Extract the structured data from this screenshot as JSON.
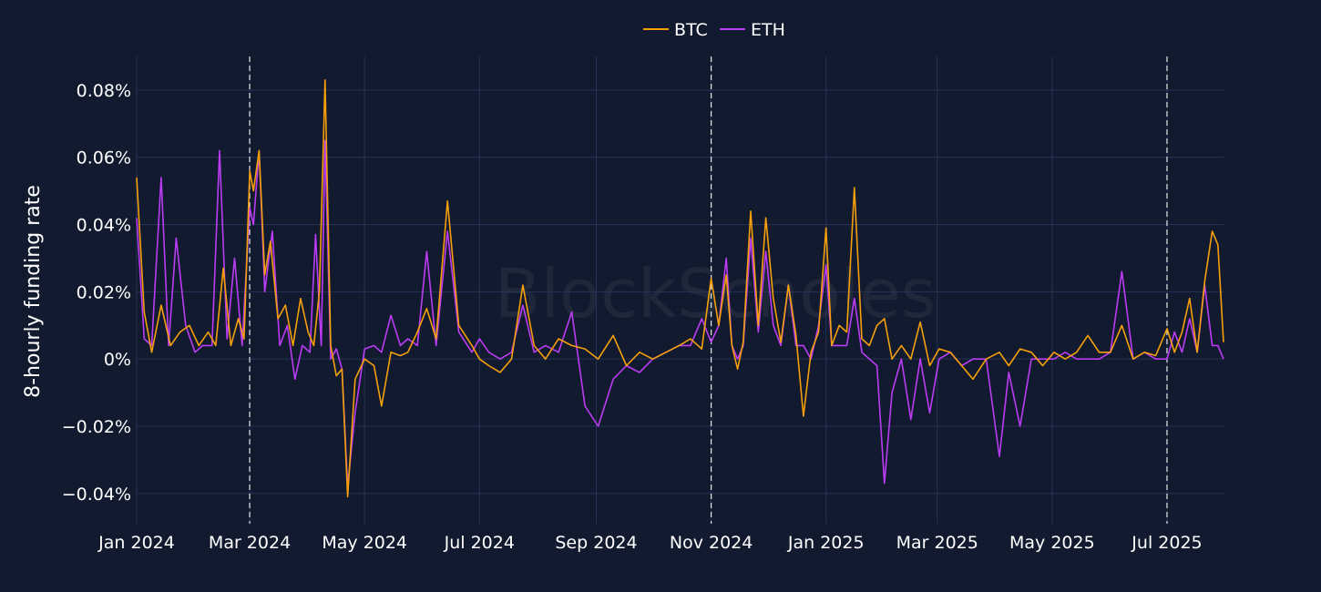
{
  "chart_data": {
    "type": "line",
    "ylabel": "8-hourly funding rate",
    "xlabel": "",
    "y_unit": "%",
    "ylim": [
      -0.049,
      0.09
    ],
    "y_ticks": [
      -0.04,
      -0.02,
      0,
      0.02,
      0.04,
      0.06,
      0.08
    ],
    "y_tick_labels": [
      "−0.04%",
      "−0.02%",
      "0%",
      "0.02%",
      "0.04%",
      "0.06%",
      "0.08%"
    ],
    "x_range": [
      "2024-01-01",
      "2025-07-31"
    ],
    "x_ticks": [
      "2024-01-01",
      "2024-03-01",
      "2024-05-01",
      "2024-07-01",
      "2024-09-01",
      "2024-11-01",
      "2025-01-01",
      "2025-03-01",
      "2025-05-01",
      "2025-07-01"
    ],
    "x_tick_labels": [
      "Jan 2024",
      "Mar 2024",
      "May 2024",
      "Jul 2024",
      "Sep 2024",
      "Nov 2024",
      "Jan 2025",
      "Mar 2025",
      "May 2025",
      "Jul 2025"
    ],
    "dashed_vlines": [
      "2024-03-01",
      "2024-11-01",
      "2025-07-01"
    ],
    "grid": true,
    "legend_position": "top-center",
    "watermark": "BlockScholes",
    "colors": {
      "background": "#111a2e",
      "grid": "#263357",
      "BTC": "#f5a00b",
      "ETH": "#bc3cf5"
    },
    "series": [
      {
        "name": "BTC",
        "x": [
          "2024-01-01",
          "2024-01-05",
          "2024-01-09",
          "2024-01-14",
          "2024-01-19",
          "2024-01-24",
          "2024-01-29",
          "2024-02-03",
          "2024-02-08",
          "2024-02-12",
          "2024-02-16",
          "2024-02-20",
          "2024-02-24",
          "2024-02-27",
          "2024-03-01",
          "2024-03-03",
          "2024-03-06",
          "2024-03-09",
          "2024-03-12",
          "2024-03-16",
          "2024-03-20",
          "2024-03-24",
          "2024-03-28",
          "2024-04-01",
          "2024-04-04",
          "2024-04-07",
          "2024-04-10",
          "2024-04-13",
          "2024-04-16",
          "2024-04-19",
          "2024-04-22",
          "2024-04-26",
          "2024-05-01",
          "2024-05-06",
          "2024-05-10",
          "2024-05-15",
          "2024-05-20",
          "2024-05-24",
          "2024-05-29",
          "2024-06-03",
          "2024-06-08",
          "2024-06-14",
          "2024-06-20",
          "2024-06-27",
          "2024-07-01",
          "2024-07-06",
          "2024-07-12",
          "2024-07-18",
          "2024-07-24",
          "2024-07-30",
          "2024-08-05",
          "2024-08-12",
          "2024-08-19",
          "2024-08-26",
          "2024-09-02",
          "2024-09-10",
          "2024-09-17",
          "2024-09-24",
          "2024-10-01",
          "2024-10-08",
          "2024-10-15",
          "2024-10-21",
          "2024-10-27",
          "2024-11-01",
          "2024-11-05",
          "2024-11-09",
          "2024-11-12",
          "2024-11-15",
          "2024-11-18",
          "2024-11-22",
          "2024-11-26",
          "2024-11-30",
          "2024-12-04",
          "2024-12-08",
          "2024-12-12",
          "2024-12-16",
          "2024-12-20",
          "2024-12-24",
          "2024-12-28",
          "2025-01-01",
          "2025-01-04",
          "2025-01-08",
          "2025-01-12",
          "2025-01-16",
          "2025-01-20",
          "2025-01-24",
          "2025-01-28",
          "2025-02-01",
          "2025-02-05",
          "2025-02-10",
          "2025-02-15",
          "2025-02-20",
          "2025-02-25",
          "2025-03-02",
          "2025-03-08",
          "2025-03-14",
          "2025-03-20",
          "2025-03-27",
          "2025-04-03",
          "2025-04-08",
          "2025-04-14",
          "2025-04-20",
          "2025-04-26",
          "2025-05-02",
          "2025-05-08",
          "2025-05-14",
          "2025-05-20",
          "2025-05-26",
          "2025-06-01",
          "2025-06-07",
          "2025-06-13",
          "2025-06-19",
          "2025-06-25",
          "2025-07-01",
          "2025-07-05",
          "2025-07-09",
          "2025-07-13",
          "2025-07-17",
          "2025-07-21",
          "2025-07-25",
          "2025-07-28",
          "2025-07-31"
        ],
        "y": [
          0.054,
          0.014,
          0.002,
          0.016,
          0.004,
          0.008,
          0.01,
          0.004,
          0.008,
          0.004,
          0.027,
          0.004,
          0.012,
          0.006,
          0.056,
          0.05,
          0.062,
          0.025,
          0.035,
          0.012,
          0.016,
          0.004,
          0.018,
          0.008,
          0.004,
          0.02,
          0.083,
          0.004,
          -0.005,
          -0.003,
          -0.041,
          -0.006,
          0.0,
          -0.002,
          -0.014,
          0.002,
          0.001,
          0.002,
          0.008,
          0.015,
          0.006,
          0.047,
          0.01,
          0.004,
          0.0,
          -0.002,
          -0.004,
          0.0,
          0.022,
          0.004,
          0.0,
          0.006,
          0.004,
          0.003,
          0.0,
          0.007,
          -0.002,
          0.002,
          0.0,
          0.002,
          0.004,
          0.006,
          0.003,
          0.024,
          0.01,
          0.025,
          0.004,
          -0.003,
          0.005,
          0.044,
          0.01,
          0.042,
          0.018,
          0.005,
          0.022,
          0.007,
          -0.017,
          0.002,
          0.008,
          0.039,
          0.004,
          0.01,
          0.008,
          0.051,
          0.006,
          0.004,
          0.01,
          0.012,
          0.0,
          0.004,
          0.0,
          0.011,
          -0.002,
          0.003,
          0.002,
          -0.002,
          -0.006,
          0.0,
          0.002,
          -0.002,
          0.003,
          0.002,
          -0.002,
          0.002,
          0.0,
          0.002,
          0.007,
          0.002,
          0.002,
          0.01,
          0.0,
          0.002,
          0.001,
          0.009,
          0.002,
          0.008,
          0.018,
          0.002,
          0.023,
          0.038,
          0.034,
          0.005
        ]
      },
      {
        "name": "ETH",
        "x": [
          "2024-01-01",
          "2024-01-05",
          "2024-01-09",
          "2024-01-14",
          "2024-01-18",
          "2024-01-22",
          "2024-01-27",
          "2024-02-01",
          "2024-02-05",
          "2024-02-10",
          "2024-02-14",
          "2024-02-18",
          "2024-02-22",
          "2024-02-26",
          "2024-03-01",
          "2024-03-03",
          "2024-03-06",
          "2024-03-09",
          "2024-03-13",
          "2024-03-17",
          "2024-03-21",
          "2024-03-25",
          "2024-03-29",
          "2024-04-02",
          "2024-04-05",
          "2024-04-08",
          "2024-04-10",
          "2024-04-13",
          "2024-04-16",
          "2024-04-19",
          "2024-04-22",
          "2024-04-26",
          "2024-05-01",
          "2024-05-06",
          "2024-05-10",
          "2024-05-15",
          "2024-05-20",
          "2024-05-24",
          "2024-05-29",
          "2024-06-03",
          "2024-06-08",
          "2024-06-14",
          "2024-06-20",
          "2024-06-27",
          "2024-07-01",
          "2024-07-06",
          "2024-07-12",
          "2024-07-18",
          "2024-07-24",
          "2024-07-30",
          "2024-08-05",
          "2024-08-12",
          "2024-08-19",
          "2024-08-26",
          "2024-09-02",
          "2024-09-10",
          "2024-09-17",
          "2024-09-24",
          "2024-10-01",
          "2024-10-08",
          "2024-10-15",
          "2024-10-21",
          "2024-10-27",
          "2024-11-01",
          "2024-11-05",
          "2024-11-09",
          "2024-11-12",
          "2024-11-15",
          "2024-11-18",
          "2024-11-22",
          "2024-11-26",
          "2024-11-30",
          "2024-12-04",
          "2024-12-08",
          "2024-12-12",
          "2024-12-16",
          "2024-12-20",
          "2024-12-24",
          "2024-12-28",
          "2025-01-01",
          "2025-01-04",
          "2025-01-08",
          "2025-01-12",
          "2025-01-16",
          "2025-01-20",
          "2025-01-24",
          "2025-01-28",
          "2025-02-01",
          "2025-02-05",
          "2025-02-10",
          "2025-02-15",
          "2025-02-20",
          "2025-02-25",
          "2025-03-02",
          "2025-03-08",
          "2025-03-14",
          "2025-03-20",
          "2025-03-27",
          "2025-04-03",
          "2025-04-08",
          "2025-04-14",
          "2025-04-20",
          "2025-04-26",
          "2025-05-02",
          "2025-05-08",
          "2025-05-14",
          "2025-05-20",
          "2025-05-26",
          "2025-06-01",
          "2025-06-07",
          "2025-06-13",
          "2025-06-19",
          "2025-06-25",
          "2025-07-01",
          "2025-07-05",
          "2025-07-09",
          "2025-07-13",
          "2025-07-17",
          "2025-07-21",
          "2025-07-25",
          "2025-07-28",
          "2025-07-31"
        ],
        "y": [
          0.042,
          0.006,
          0.004,
          0.054,
          0.004,
          0.036,
          0.01,
          0.002,
          0.004,
          0.004,
          0.062,
          0.006,
          0.03,
          0.004,
          0.045,
          0.04,
          0.062,
          0.02,
          0.038,
          0.004,
          0.01,
          -0.006,
          0.004,
          0.002,
          0.037,
          0.004,
          0.065,
          0.0,
          0.003,
          -0.003,
          -0.038,
          -0.016,
          0.003,
          0.004,
          0.002,
          0.013,
          0.004,
          0.006,
          0.004,
          0.032,
          0.004,
          0.038,
          0.008,
          0.002,
          0.006,
          0.002,
          0.0,
          0.002,
          0.016,
          0.002,
          0.004,
          0.002,
          0.014,
          -0.014,
          -0.02,
          -0.006,
          -0.002,
          -0.004,
          0.0,
          0.002,
          0.004,
          0.004,
          0.012,
          0.005,
          0.01,
          0.03,
          0.004,
          0.0,
          0.004,
          0.036,
          0.008,
          0.032,
          0.01,
          0.004,
          0.022,
          0.004,
          0.004,
          0.0,
          0.01,
          0.028,
          0.004,
          0.004,
          0.004,
          0.018,
          0.002,
          0.0,
          -0.002,
          -0.037,
          -0.01,
          0.0,
          -0.018,
          0.0,
          -0.016,
          0.0,
          0.002,
          -0.002,
          0.0,
          0.0,
          -0.029,
          -0.004,
          -0.02,
          0.0,
          0.0,
          0.0,
          0.002,
          0.0,
          0.0,
          0.0,
          0.002,
          0.026,
          0.0,
          0.002,
          0.0,
          0.0,
          0.008,
          0.002,
          0.012,
          0.002,
          0.022,
          0.004,
          0.004,
          0.0
        ]
      }
    ]
  }
}
